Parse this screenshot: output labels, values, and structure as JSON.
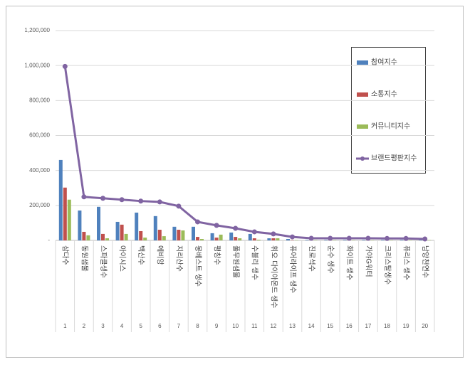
{
  "chart_data": {
    "type": "bar-line",
    "categories": [
      "삼다수",
      "동원샘물",
      "스파클생수",
      "아이시스",
      "백산수",
      "에비앙",
      "지리산수",
      "몽베스트 생수",
      "평창수",
      "풀무원샘물",
      "수블리 생수",
      "휘오 다이아몬드 생수",
      "퓨어라이프 생수",
      "진로석수",
      "순수 생수",
      "화이트 생수",
      "가야G워터",
      "크리스탈생수",
      "퓨리스 생수",
      "남양천연수"
    ],
    "ranks": [
      1,
      2,
      3,
      4,
      5,
      6,
      7,
      8,
      9,
      10,
      11,
      12,
      13,
      14,
      15,
      16,
      17,
      18,
      19,
      20
    ],
    "series": [
      {
        "name": "참여지수",
        "type": "bar",
        "color": "#4f81bd",
        "values": [
          460000,
          171000,
          192000,
          106000,
          159000,
          139000,
          78000,
          78000,
          41000,
          45000,
          37000,
          12000,
          8000,
          3000,
          3000,
          3000,
          3000,
          3000,
          3000,
          3000
        ]
      },
      {
        "name": "소통지수",
        "type": "bar",
        "color": "#c0504d",
        "values": [
          302000,
          49000,
          37000,
          90000,
          53000,
          61000,
          61000,
          20000,
          16000,
          20000,
          12000,
          12000,
          2000,
          2000,
          2000,
          2000,
          2000,
          2000,
          2000,
          2000
        ]
      },
      {
        "name": "커뮤니티지수",
        "type": "bar",
        "color": "#9bbb59",
        "values": [
          233000,
          29000,
          12000,
          37000,
          16000,
          24000,
          57000,
          8000,
          33000,
          12000,
          4000,
          12000,
          2000,
          2000,
          2000,
          2000,
          2000,
          2000,
          2000,
          2000
        ]
      },
      {
        "name": "브랜드평판지수",
        "type": "line",
        "color": "#8064a2",
        "values": [
          995000,
          249000,
          241000,
          233000,
          225000,
          220000,
          196000,
          106000,
          86000,
          69000,
          49000,
          37000,
          20000,
          12000,
          12000,
          12000,
          12000,
          11000,
          11000,
          8000
        ]
      }
    ],
    "ylim": [
      0,
      1200000
    ],
    "yticks": [
      {
        "value": 0,
        "label": "-"
      },
      {
        "value": 200000,
        "label": "200,000"
      },
      {
        "value": 400000,
        "label": "400,000"
      },
      {
        "value": 600000,
        "label": "600,000"
      },
      {
        "value": 800000,
        "label": "800,000"
      },
      {
        "value": 1000000,
        "label": "1,000,000"
      },
      {
        "value": 1200000,
        "label": "1,200,000"
      }
    ],
    "grid": true,
    "legend": "right"
  }
}
